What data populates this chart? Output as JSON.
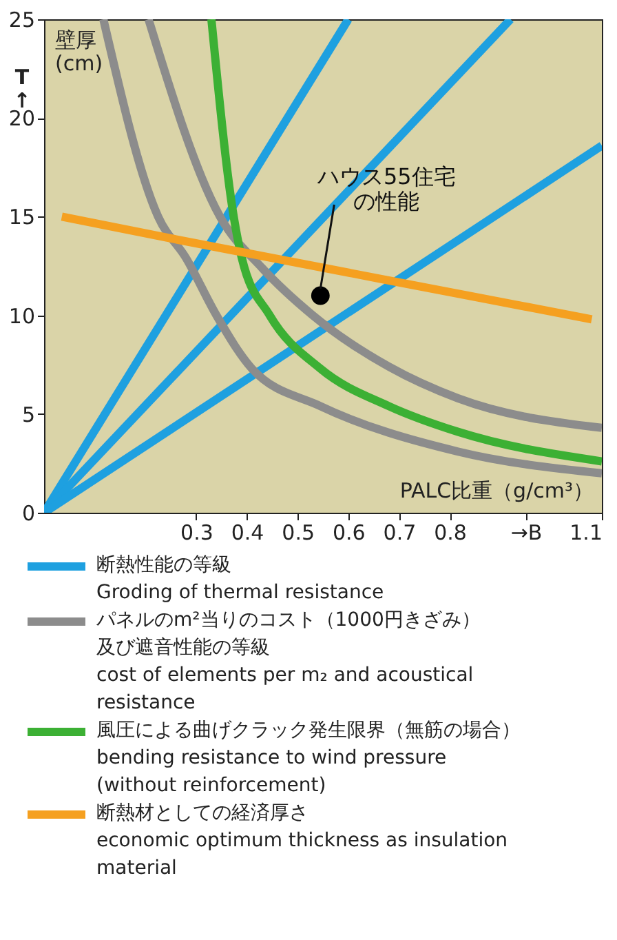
{
  "chart_data": {
    "type": "line",
    "xlabel": "PALC比重（g/cm³）",
    "ylabel": "壁厚\n(cm)",
    "xlim": [
      0,
      1.1
    ],
    "ylim": [
      0,
      25
    ],
    "xticks": [
      0.3,
      0.4,
      0.5,
      0.6,
      0.7,
      0.8,
      {
        "value": 0.95,
        "label": "→B"
      },
      1.1
    ],
    "yticks": [
      0,
      5,
      10,
      15,
      20,
      25
    ],
    "grid": false,
    "legend": "bottom",
    "annotations": [
      "T\n↑",
      {
        "text": "ハウス55住宅の性能",
        "x": 0.545,
        "y": 11.0
      }
    ],
    "series": [
      {
        "name": "断熱性能の等級\nGroding of thermal resistance",
        "color": "#1ea0e0",
        "line_style": "solid",
        "x": [
          0,
          0.6
        ],
        "values": [
          0,
          25
        ]
      },
      {
        "color": "#1ea0e0",
        "line_style": "solid",
        "x": [
          0,
          0.92
        ],
        "values": [
          0,
          25
        ]
      },
      {
        "color": "#1ea0e0",
        "line_style": "solid",
        "x": [
          0,
          1.1
        ],
        "values": [
          0,
          18.6
        ]
      },
      {
        "name": "パネルのm²当りのコスト（1000円きざみ）及び遮音性能の等級\ncost of elements per m₂ and acoustical\nresistance",
        "color": "#8c8c8c",
        "line_style": "solid",
        "x": [
          0.117,
          0.225,
          0.28,
          0.34,
          0.41,
          0.545,
          0.816,
          1.1
        ],
        "values": [
          25,
          15,
          12.9,
          10,
          7.3,
          5.4,
          3.1,
          2.0
        ]
      },
      {
        "color": "#8c8c8c",
        "line_style": "solid",
        "x": [
          0.206,
          0.347,
          0.43,
          0.53,
          0.68,
          0.816,
          1.1
        ],
        "values": [
          25,
          15,
          12.4,
          10,
          7.4,
          5.8,
          4.3
        ]
      },
      {
        "name": "風圧による曲げクラック発生限界（無筋の場合）\nbending resistance to wind pressure\n(without reinforcement)",
        "color": "#3cb034",
        "line_style": "solid",
        "x": [
          0.33,
          0.374,
          0.39,
          0.445,
          0.545,
          0.68,
          0.816,
          1.1
        ],
        "values": [
          25,
          15,
          12.9,
          10,
          7.3,
          5.4,
          4.1,
          2.6
        ]
      },
      {
        "name": "断熱材としての経済厚さ\neconomic optimum thickness as insulation\nmaterial",
        "color": "#f5a020",
        "line_style": "solid",
        "x": [
          0.035,
          0.25,
          0.857,
          1.08
        ],
        "values": [
          15.0,
          13.9,
          10.9,
          9.8
        ]
      },
      {
        "type": "scatter",
        "marker": "circle",
        "color": "#000000",
        "x": [
          0.545
        ],
        "values": [
          11.0
        ]
      }
    ]
  }
}
